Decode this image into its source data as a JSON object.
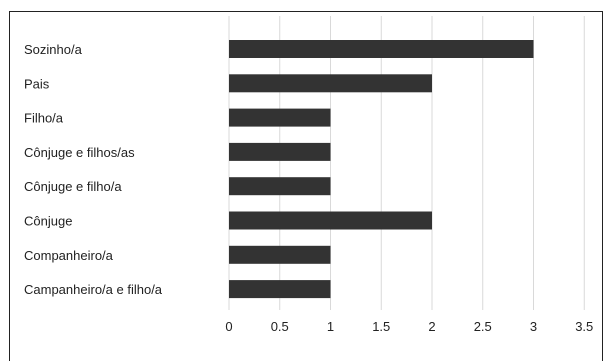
{
  "chart_data": {
    "type": "bar",
    "orientation": "horizontal",
    "categories": [
      "Sozinho/a",
      "Pais",
      "Filho/a",
      "Cônjuge e filhos/as",
      "Cônjuge e filho/a",
      "Cônjuge",
      "Companheiro/a",
      "Campanheiro/a e filho/a"
    ],
    "values": [
      3,
      2,
      1,
      1,
      1,
      2,
      1,
      1
    ],
    "xlim": [
      0,
      3.5
    ],
    "xticks": [
      "0",
      "0.5",
      "1",
      "1.5",
      "2",
      "2.5",
      "3",
      "3.5"
    ],
    "grid": true,
    "legend": "none",
    "bar_color": "#333333",
    "grid_color": "#d9d9d9"
  }
}
